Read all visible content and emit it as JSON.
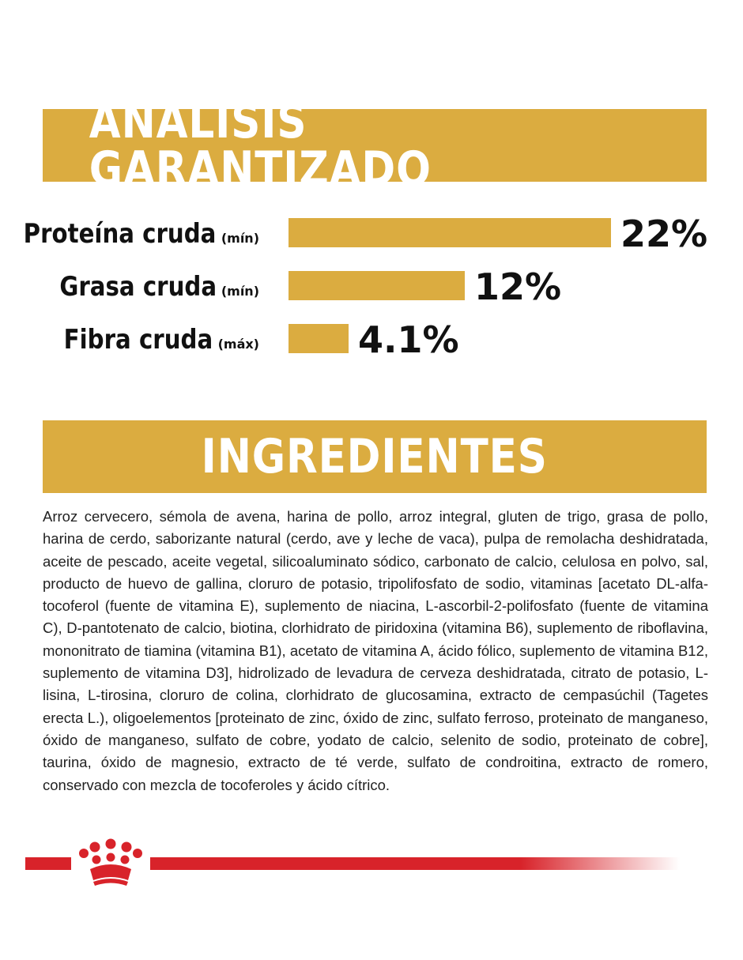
{
  "colors": {
    "banner": "#DBAC40",
    "bar": "#DBAC40",
    "brand_red": "#D8232A"
  },
  "analysis": {
    "title": "ANÁLISIS GARANTIZADO"
  },
  "chart_data": {
    "type": "bar",
    "orientation": "horizontal",
    "title": "ANÁLISIS GARANTIZADO",
    "unit": "%",
    "items": [
      {
        "name": "Proteína cruda",
        "qualifier": "(mín)",
        "value": 22,
        "value_label": "22%"
      },
      {
        "name": "Grasa cruda",
        "qualifier": "(mín)",
        "value": 12,
        "value_label": "12%"
      },
      {
        "name": "Fibra cruda",
        "qualifier": "(máx)",
        "value": 4.1,
        "value_label": "4.1%"
      }
    ]
  },
  "ingredients": {
    "title": "INGREDIENTES",
    "text": "Arroz cervecero, sémola de avena, harina de pollo, arroz integral, gluten de trigo, grasa de pollo, harina de cerdo, saborizante natural (cerdo, ave y leche de vaca), pulpa de remolacha deshidratada, aceite de pescado, aceite vegetal, silicoaluminato sódico, carbonato de calcio, celulosa en polvo, sal, producto de huevo de gallina, cloruro de potasio, tripolifosfato de sodio, vitaminas [acetato DL-alfa-tocoferol (fuente de vitamina E), suplemento de niacina, L-ascorbil-2-polifosfato (fuente de vitamina C), D-pantotenato de calcio, biotina, clorhidrato de piridoxina (vitamina B6), suplemento de riboflavina, mononitrato de tiamina (vitamina B1), acetato de vitamina A, ácido fólico, suplemento de vitamina B12, suplemento de vitamina D3], hidrolizado de levadura de cerveza deshidratada, citrato de potasio, L-lisina, L-tirosina, cloruro de colina, clorhidrato de glucosamina, extracto de cempasúchil (Tagetes erecta L.), oligoelementos [proteinato de zinc, óxido de zinc, sulfato ferroso, proteinato de manganeso, óxido de manganeso, sulfato de cobre, yodato de calcio, selenito de sodio, proteinato de cobre], taurina, óxido de magnesio, extracto de té verde, sulfato de condroitina, extracto de romero, conservado con mezcla de tocoferoles y ácido cítrico."
  },
  "footer": {
    "logo_icon": "royal-crown-icon"
  }
}
